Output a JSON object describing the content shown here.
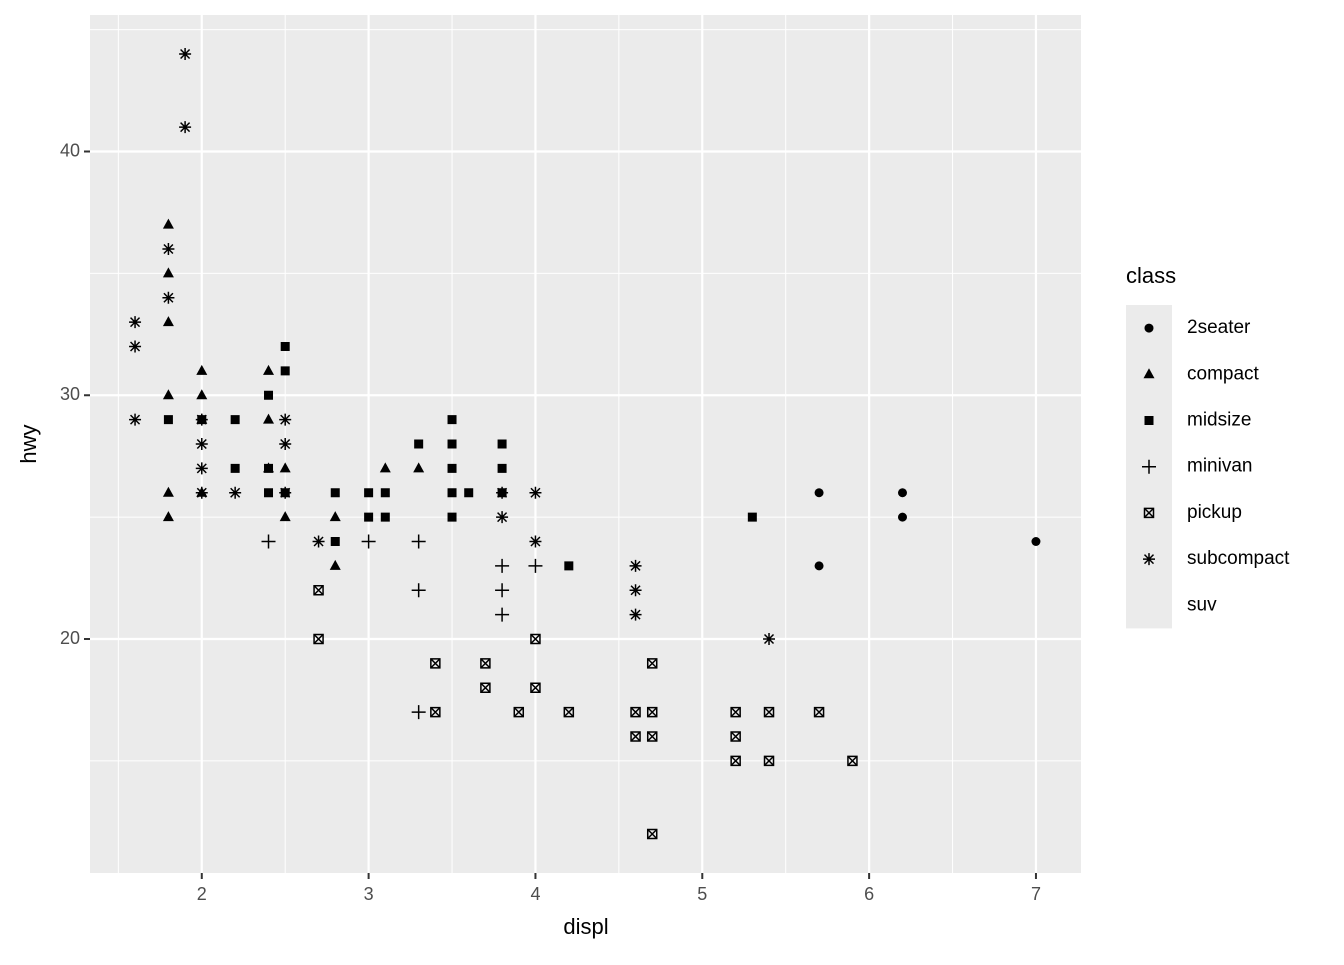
{
  "chart_data": {
    "type": "scatter",
    "x_label": "displ",
    "y_label": "hwy",
    "legend_title": "class",
    "xlim": [
      1.33,
      7.27
    ],
    "ylim": [
      10.4,
      45.6
    ],
    "xticks": [
      2,
      3,
      4,
      5,
      6,
      7
    ],
    "yticks": [
      20,
      30,
      40
    ],
    "xminor": [
      1.5,
      2.5,
      3.5,
      4.5,
      5.5,
      6.5
    ],
    "yminor": [
      15,
      25,
      35,
      45
    ],
    "grid": true,
    "legend": "right",
    "color": "#000000",
    "series": [
      {
        "name": "2seater",
        "shape": "circle",
        "x": [
          5.7,
          6.2,
          6.2,
          5.7,
          7
        ],
        "values": [
          26,
          26,
          25,
          23,
          24
        ]
      },
      {
        "name": "compact",
        "shape": "triangle",
        "x": [
          1.8,
          1.8,
          1.8,
          1.8,
          1.8,
          1.8,
          2,
          2,
          2,
          2,
          2.4,
          2.4,
          2.4,
          2.5,
          2.5,
          2.8,
          2.8,
          3.1,
          3.3
        ],
        "values": [
          37,
          35,
          33,
          30,
          26,
          25,
          31,
          30,
          29,
          26,
          31,
          29,
          27,
          27,
          25,
          25,
          23,
          27,
          27
        ]
      },
      {
        "name": "midsize",
        "shape": "square",
        "x": [
          1.8,
          2,
          2.2,
          2.2,
          2.4,
          2.4,
          2.4,
          2.5,
          2.5,
          2.5,
          2.8,
          2.8,
          3,
          3,
          3.1,
          3.1,
          3.3,
          3.5,
          3.5,
          3.5,
          3.5,
          3.5,
          3.6,
          3.8,
          3.8,
          3.8,
          4.2,
          5.3
        ],
        "values": [
          29,
          29,
          29,
          27,
          30,
          26,
          27,
          32,
          31,
          26,
          26,
          24,
          26,
          25,
          26,
          25,
          28,
          29,
          28,
          27,
          26,
          25,
          26,
          28,
          27,
          26,
          23,
          25
        ]
      },
      {
        "name": "minivan",
        "shape": "plus",
        "x": [
          2.4,
          3,
          3.3,
          3.3,
          3.3,
          3.8,
          3.8,
          3.8,
          4
        ],
        "values": [
          24,
          24,
          24,
          22,
          17,
          23,
          22,
          21,
          23
        ]
      },
      {
        "name": "pickup",
        "shape": "boxx",
        "x": [
          2.7,
          2.7,
          3.4,
          3.4,
          3.7,
          3.7,
          3.9,
          4,
          4,
          4.2,
          4.6,
          4.6,
          4.7,
          4.7,
          4.7,
          4.7,
          5.2,
          5.2,
          5.2,
          5.4,
          5.4,
          5.7,
          5.9
        ],
        "values": [
          22,
          20,
          19,
          17,
          19,
          18,
          17,
          20,
          18,
          17,
          17,
          16,
          19,
          17,
          16,
          12,
          17,
          16,
          15,
          17,
          15,
          17,
          15
        ]
      },
      {
        "name": "subcompact",
        "shape": "asterisk",
        "x": [
          1.6,
          1.6,
          1.6,
          1.8,
          1.8,
          1.9,
          1.9,
          2,
          2,
          2,
          2,
          2.2,
          2.5,
          2.5,
          2.5,
          2.7,
          3.8,
          3.8,
          4,
          4,
          4.6,
          4.6,
          4.6,
          5.4
        ],
        "values": [
          33,
          32,
          29,
          36,
          34,
          44,
          41,
          29,
          28,
          27,
          26,
          26,
          29,
          28,
          26,
          24,
          26,
          25,
          26,
          24,
          23,
          22,
          21,
          20
        ]
      },
      {
        "name": "suv",
        "shape": null
      }
    ]
  }
}
